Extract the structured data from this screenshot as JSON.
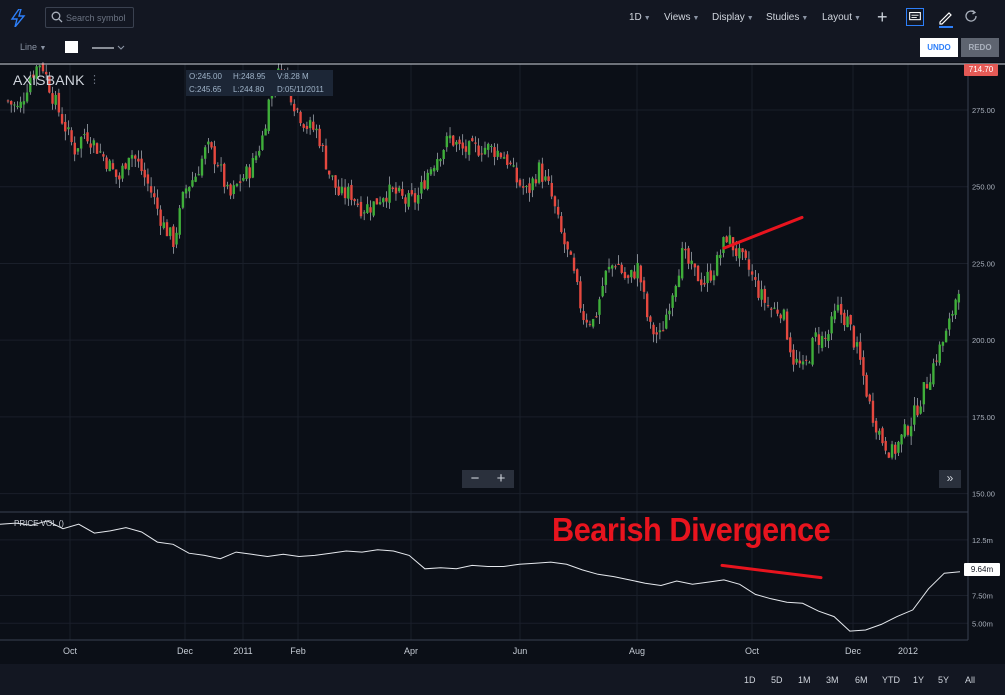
{
  "toolbar": {
    "search_placeholder": "Search symbol",
    "interval": "1D",
    "views": "Views",
    "display": "Display",
    "studies": "Studies",
    "layout": "Layout",
    "line_type": "Line",
    "undo": "UNDO",
    "redo": "REDO"
  },
  "legend": {
    "symbol": "AXISBANK",
    "open": "O:245.00",
    "high": "H:248.95",
    "volume": "V:8.28 M",
    "close": "C:245.65",
    "low": "L:244.80",
    "date": "D:05/11/2011"
  },
  "last_price": "714.70",
  "indicator": {
    "name": "PRICE VOL ()",
    "last_value": "9.64m"
  },
  "annotation": "Bearish Divergence",
  "range_buttons": [
    "1D",
    "5D",
    "1M",
    "3M",
    "6M",
    "YTD",
    "1Y",
    "5Y",
    "All"
  ],
  "colors": {
    "up": "#26a69a",
    "down": "#ef5350",
    "trendline": "#e8141e",
    "accent": "#2d7ff9"
  },
  "chart_data": [
    {
      "type": "candlestick",
      "x_ticks": [
        "Oct",
        "Dec",
        "2011",
        "Feb",
        "Apr",
        "Jun",
        "Aug",
        "Oct",
        "Dec",
        "2012"
      ],
      "y_ticks": [
        "275.00",
        "250.00",
        "225.00",
        "200.00",
        "175.00",
        "150.00"
      ],
      "ylim": [
        144,
        290
      ],
      "close_series": [
        278,
        275,
        286,
        291,
        280,
        271,
        262,
        268,
        263,
        258,
        252,
        262,
        256,
        248,
        238,
        232,
        249,
        254,
        263,
        258,
        246,
        252,
        256,
        266,
        286,
        287,
        276,
        270,
        268,
        255,
        247,
        248,
        243,
        244,
        248,
        248,
        245,
        246,
        255,
        261,
        266,
        262,
        262,
        263,
        262,
        260,
        252,
        248,
        256,
        249,
        235,
        224,
        208,
        206,
        221,
        226,
        219,
        224,
        204,
        201,
        215,
        228,
        222,
        219,
        224,
        234,
        228,
        223,
        215,
        210,
        210,
        194,
        190,
        201,
        200,
        210,
        206,
        194,
        178,
        168,
        163,
        169,
        176,
        185,
        195,
        203,
        218
      ],
      "trendline": {
        "from": {
          "x": "Sep 2011",
          "y": 230
        },
        "to": {
          "x": "Nov 2011",
          "y": 240
        }
      }
    },
    {
      "type": "line",
      "y_ticks": [
        "12.5m",
        "7.50m",
        "5.00m"
      ],
      "ylim": [
        3.5,
        15
      ],
      "values": [
        13.9,
        14,
        13.8,
        14.2,
        13.5,
        13.9,
        13.1,
        13.3,
        13.6,
        13.2,
        12.3,
        12.1,
        11.3,
        11.1,
        10.8,
        11.4,
        11.2,
        11,
        11.2,
        11,
        11.1,
        11.3,
        11.5,
        11.4,
        11.6,
        11.5,
        11.1,
        9.9,
        10,
        9.9,
        10.2,
        10.1,
        10.1,
        10.3,
        10.4,
        10.5,
        10.3,
        9.8,
        9.4,
        9.2,
        8.9,
        8.6,
        8.4,
        8.8,
        8.5,
        8.7,
        8.9,
        8.5,
        7.6,
        7.2,
        6.9,
        6.8,
        6.1,
        5.6,
        4.3,
        4.4,
        4.9,
        5.6,
        6.2,
        8.1,
        9.5,
        9.64
      ],
      "trendline": {
        "from": {
          "x": "Sep 2011",
          "y": 10.2
        },
        "to": {
          "x": "Nov 2011",
          "y": 9.1
        }
      }
    }
  ]
}
